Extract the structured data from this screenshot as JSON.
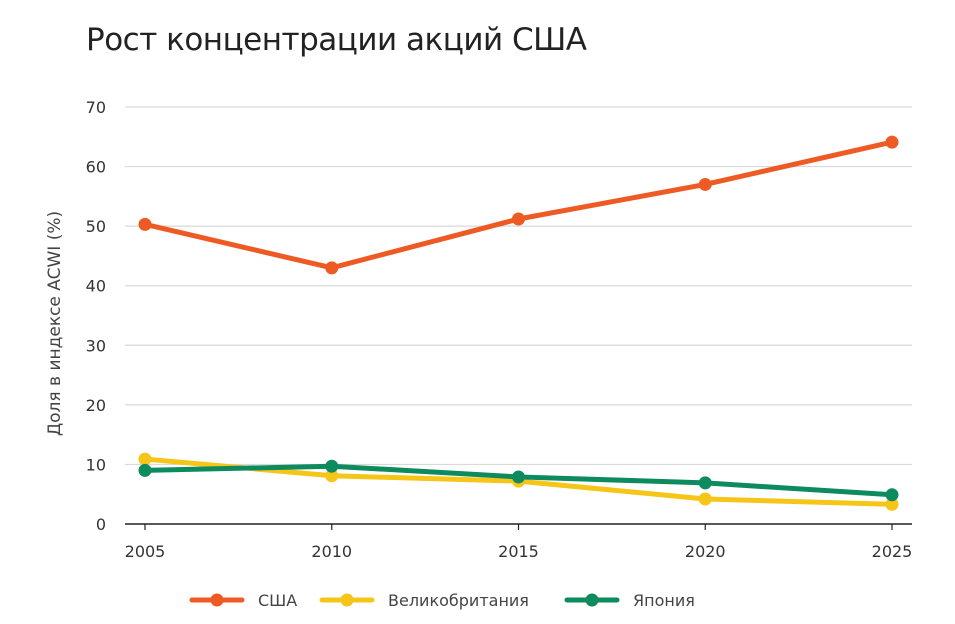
{
  "chart_data": {
    "type": "line",
    "title": "Рост концентрации акций США",
    "xlabel": "",
    "ylabel": "Доля в индексе ACWI (%)",
    "x": [
      2005,
      2010,
      2015,
      2020,
      2025
    ],
    "ylim": [
      0,
      70
    ],
    "yticks": [
      0,
      10,
      20,
      30,
      40,
      50,
      60,
      70
    ],
    "grid": true,
    "legend_position": "bottom",
    "series": [
      {
        "name": "США",
        "color": "#ee5a24",
        "values": [
          50.3,
          43.0,
          51.2,
          57.0,
          64.1
        ]
      },
      {
        "name": "Великобритания",
        "color": "#f5c518",
        "values": [
          10.9,
          8.1,
          7.2,
          4.2,
          3.3
        ]
      },
      {
        "name": "Япония",
        "color": "#0e8a5f",
        "values": [
          9.0,
          9.7,
          7.9,
          6.9,
          4.9
        ]
      }
    ]
  }
}
